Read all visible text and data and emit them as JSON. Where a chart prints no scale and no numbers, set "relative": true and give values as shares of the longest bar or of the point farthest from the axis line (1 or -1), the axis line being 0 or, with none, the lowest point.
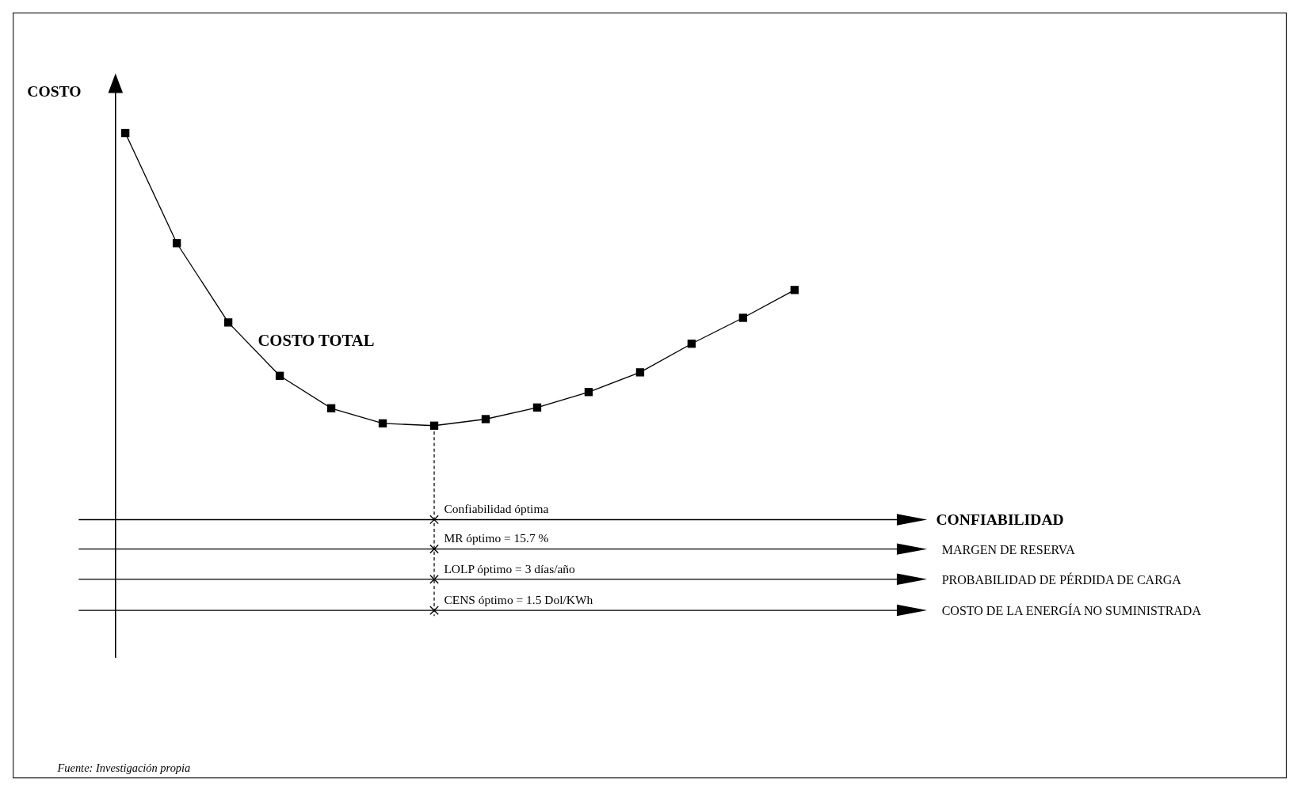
{
  "chart_data": {
    "type": "line",
    "relative": true,
    "categories": [
      null,
      null,
      null,
      null,
      null,
      null,
      null,
      null,
      null,
      null,
      null,
      null,
      null,
      null
    ],
    "series": [
      {
        "name": "COSTO TOTAL",
        "color": "#000000",
        "values": [
          1,
          0.715,
          0.51,
          0.372,
          0.288,
          0.249,
          0.243,
          0.26,
          0.29,
          0.33,
          0.381,
          0.455,
          0.522,
          0.594
        ]
      }
    ],
    "marker": "square",
    "line_style": "solid",
    "ylabel": "COSTO",
    "annotations": [
      "Confiabilidad óptima",
      "MR óptimo = 15.7 %",
      "LOLP óptimo = 3 días/año",
      "CENS óptimo = 1.5 Dol/KWh",
      "CONFIABILIDAD",
      "MARGEN DE RESERVA",
      "PROBABILIDAD DE PÉRDIDA DE CARGA",
      "COSTO DE LA ENERGÍA NO SUMINISTRADA",
      "Fuente: Investigación propia"
    ]
  }
}
